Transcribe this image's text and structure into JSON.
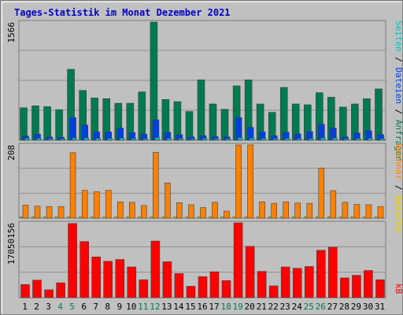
{
  "chart_data": {
    "title": "Tages-Statistik im Monat Dezember 2021",
    "type": "bar",
    "x": [
      "1",
      "2",
      "3",
      "4",
      "5",
      "6",
      "7",
      "8",
      "9",
      "10",
      "11",
      "12",
      "13",
      "14",
      "15",
      "16",
      "17",
      "18",
      "19",
      "20",
      "21",
      "22",
      "23",
      "24",
      "25",
      "26",
      "27",
      "28",
      "29",
      "30",
      "31"
    ],
    "weekend_days": [
      "4",
      "5",
      "11",
      "12",
      "18",
      "19",
      "25",
      "26"
    ],
    "colors": {
      "anfragen": "#007a50",
      "dateien": "#0040e0",
      "seiten": "#00c0c0",
      "besuche": "#f0d000",
      "rechner": "#ff8000",
      "kb": "#ff0000",
      "weekend_label": "#007a50",
      "weekday_label": "#000000",
      "background": "#c0c0c0",
      "grid": "#909090"
    },
    "panels": [
      {
        "id": "requests",
        "max_label": "1566",
        "ymax": 1566,
        "series": [
          {
            "key": "anfragen",
            "values": [
              430,
              455,
              445,
              405,
              940,
              660,
              560,
              550,
              490,
              490,
              640,
              1566,
              540,
              510,
              380,
              800,
              480,
              410,
              720,
              800,
              480,
              370,
              700,
              480,
              470,
              630,
              570,
              440,
              480,
              550,
              680
            ]
          },
          {
            "key": "dateien",
            "values": [
              55,
              80,
              45,
              40,
              300,
              200,
              110,
              110,
              160,
              100,
              80,
              270,
              105,
              75,
              45,
              60,
              50,
              45,
              300,
              170,
              110,
              60,
              105,
              85,
              115,
              210,
              160,
              45,
              95,
              125,
              75
            ]
          },
          {
            "key": "seiten",
            "values": [
              25,
              25,
              20,
              18,
              30,
              30,
              25,
              25,
              28,
              22,
              20,
              35,
              25,
              22,
              18,
              22,
              20,
              18,
              35,
              28,
              25,
              20,
              25,
              20,
              22,
              30,
              28,
              18,
              22,
              25,
              20
            ]
          }
        ]
      },
      {
        "id": "visits",
        "max_label": "208",
        "ymax": 208,
        "series": [
          {
            "key": "besuche",
            "values": [
              4,
              4,
              4,
              4,
              4,
              4,
              4,
              4,
              4,
              4,
              4,
              4,
              4,
              4,
              4,
              4,
              4,
              4,
              4,
              4,
              4,
              4,
              4,
              4,
              4,
              4,
              4,
              4,
              4,
              4,
              4
            ]
          },
          {
            "key": "rechner",
            "values": [
              37,
              34,
              33,
              33,
              186,
              79,
              75,
              79,
              46,
              45,
              36,
              187,
              100,
              44,
              38,
              30,
              45,
              20,
              208,
              208,
              46,
              42,
              46,
              43,
              42,
              142,
              78,
              45,
              39,
              38,
              33
            ]
          }
        ]
      },
      {
        "id": "kb",
        "max_label": "17050156",
        "ymax": 17050156,
        "series": [
          {
            "key": "kb",
            "values": [
              3000000,
              4000000,
              1800000,
              3400000,
              16900000,
              12800000,
              9300000,
              8300000,
              8700000,
              7000000,
              4100000,
              12900000,
              8200000,
              5500000,
              2600000,
              4800000,
              5900000,
              3900000,
              17050156,
              11700000,
              6000000,
              2700000,
              7000000,
              6700000,
              7100000,
              10800000,
              11500000,
              4500000,
              5100000,
              6200000,
              4100000
            ]
          }
        ]
      }
    ]
  },
  "side_labels": {
    "right_top": [
      {
        "text": "Seiten",
        "color": "#00c0c0"
      },
      {
        "text": " / ",
        "color": "#000000"
      },
      {
        "text": "Dateien",
        "color": "#0040e0"
      },
      {
        "text": " / ",
        "color": "#000000"
      },
      {
        "text": "Anfragen",
        "color": "#007a50"
      }
    ],
    "right_mid": [
      {
        "text": "Rechner",
        "color": "#ff8000"
      },
      {
        "text": " / ",
        "color": "#000000"
      },
      {
        "text": "Besuche",
        "color": "#f0d000"
      }
    ],
    "right_bottom": [
      {
        "text": "kB",
        "color": "#ff0000"
      }
    ]
  }
}
